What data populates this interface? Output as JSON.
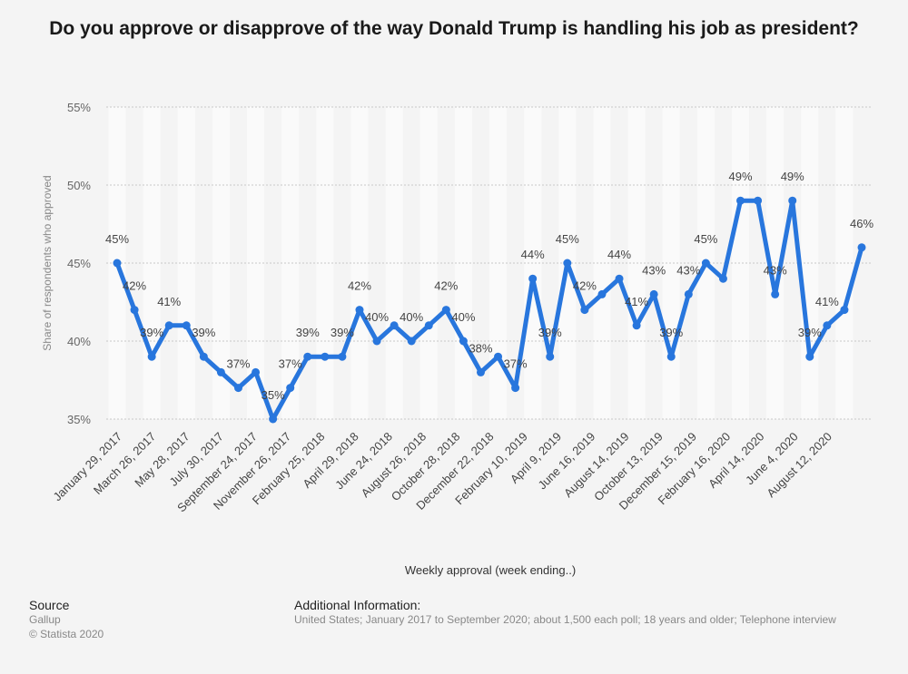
{
  "title": "Do you approve or disapprove of the way Donald Trump is handling his job as president?",
  "footer": {
    "source_heading": "Source",
    "source_name": "Gallup",
    "copyright": "© Statista 2020",
    "additional_heading": "Additional Information:",
    "additional_text": "United States; January 2017 to September 2020; about 1,500 each poll; 18 years and older; Telephone interview"
  },
  "colors": {
    "line": "#2876dd",
    "grid": "#c8c8c8",
    "band_light": "#fafafa",
    "band_dark": "#f1f1f1"
  },
  "chart_data": {
    "type": "line",
    "title": "Do you approve or disapprove of the way Donald Trump is handling his job as president?",
    "xlabel": "Weekly approval (week ending..)",
    "ylabel": "Share of respondents who approved",
    "ylim": [
      35,
      55
    ],
    "yticks": [
      35,
      40,
      45,
      50,
      55
    ],
    "ytick_labels": [
      "35%",
      "40%",
      "45%",
      "50%",
      "55%"
    ],
    "grid": true,
    "xtick_labels": [
      "January 29, 2017",
      "March 26, 2017",
      "May 28, 2017",
      "July 30, 2017",
      "September 24, 2017",
      "November 26, 2017",
      "February 25, 2018",
      "April 29, 2018",
      "June 24, 2018",
      "August 26, 2018",
      "October 28, 2018",
      "December 22, 2018",
      "February 10, 2019",
      "April 9, 2019",
      "June 16, 2019",
      "August 14, 2019",
      "October 13, 2019",
      "December 15, 2019",
      "February 16, 2020",
      "April 14, 2020",
      "June 4, 2020",
      "August 12, 2020"
    ],
    "series": [
      {
        "values": [
          45,
          42,
          39,
          41,
          41,
          39,
          38,
          37,
          38,
          35,
          37,
          39,
          39,
          39,
          42,
          40,
          41,
          40,
          41,
          42,
          40,
          38,
          39,
          37,
          44,
          39,
          45,
          42,
          43,
          44,
          41,
          43,
          39,
          43,
          45,
          44,
          49,
          49,
          43,
          49,
          39,
          41,
          42,
          46
        ],
        "data_labels": [
          "45%",
          "42%",
          "39%",
          "41%",
          "",
          "39%",
          "",
          "37%",
          "",
          "35%",
          "37%",
          "39%",
          "",
          "39%",
          "42%",
          "40%",
          "",
          "40%",
          "",
          "42%",
          "40%",
          "38%",
          "",
          "37%",
          "44%",
          "39%",
          "45%",
          "42%",
          "",
          "44%",
          "41%",
          "43%",
          "39%",
          "43%",
          "45%",
          "",
          "49%",
          "",
          "43%",
          "49%",
          "39%",
          "41%",
          "",
          "46%"
        ]
      }
    ]
  }
}
